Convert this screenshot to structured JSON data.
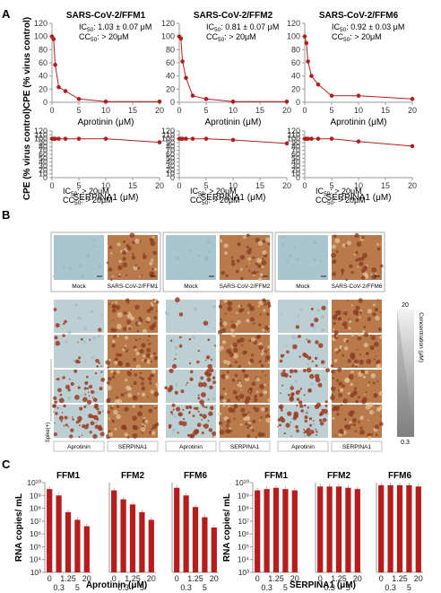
{
  "figure": {
    "panel_letters": [
      "A",
      "B",
      "C"
    ]
  },
  "colors": {
    "series": "#b51c1c",
    "bar": "#b51c1c",
    "axis": "#9a9a9a",
    "grid": "#cfcfcf",
    "mock_tissue": "#a9c6d0",
    "infected_tissue": "#b87a4a",
    "stain_red": "#9c3a22"
  },
  "chart_data": [
    {
      "id": "a1",
      "type": "line",
      "title": "SARS-CoV-2/FFM1",
      "xlabel": "Aprotinin (μM)",
      "ylabel": "CPE (% virus control)",
      "xlim": [
        0,
        20
      ],
      "ylim": [
        0,
        120
      ],
      "xticks": [
        0,
        5,
        10,
        15,
        20
      ],
      "yticks": [
        0,
        20,
        40,
        60,
        80,
        100,
        120
      ],
      "annotation": [
        "IC50: 1.03 ± 0.07 μM",
        "CC50: > 20μM"
      ],
      "x": [
        0,
        0.3,
        0.6,
        1.25,
        2.5,
        5,
        10,
        20
      ],
      "y": [
        100,
        96,
        57,
        23,
        17,
        5,
        1,
        1
      ]
    },
    {
      "id": "a2",
      "type": "line",
      "title": "SARS-CoV-2/FFM2",
      "xlabel": "Aprotinin (μM)",
      "ylabel": "",
      "xlim": [
        0,
        20
      ],
      "ylim": [
        0,
        120
      ],
      "xticks": [
        0,
        5,
        10,
        15,
        20
      ],
      "yticks": [
        0,
        20,
        40,
        60,
        80,
        100,
        120
      ],
      "annotation": [
        "IC50: 0.81 ± 0.07 μM",
        "CC50: > 20μM"
      ],
      "x": [
        0,
        0.3,
        0.6,
        1.25,
        2.5,
        5,
        10,
        20
      ],
      "y": [
        100,
        97,
        62,
        37,
        10,
        5,
        1,
        1
      ]
    },
    {
      "id": "a3",
      "type": "line",
      "title": "SARS-CoV-2/FFM6",
      "xlabel": "Aprotinin (μM)",
      "ylabel": "",
      "xlim": [
        0,
        20
      ],
      "ylim": [
        0,
        120
      ],
      "xticks": [
        0,
        5,
        10,
        15,
        20
      ],
      "yticks": [
        0,
        20,
        40,
        60,
        80,
        100,
        120
      ],
      "annotation": [
        "IC50: 0.92 ± 0.03 μM",
        "CC50: > 20μM"
      ],
      "x": [
        0,
        0.3,
        0.6,
        1.25,
        2.5,
        5,
        10,
        20
      ],
      "y": [
        100,
        90,
        62,
        40,
        27,
        10,
        10,
        5
      ]
    },
    {
      "id": "a4",
      "type": "line",
      "title": "",
      "xlabel": "SERPINA1 (μM)",
      "ylabel": "CPE (% virus control)",
      "xlim": [
        0,
        20
      ],
      "ylim": [
        0,
        120
      ],
      "xticks": [
        0,
        5,
        10,
        15,
        20
      ],
      "yticks": [
        0,
        10,
        20,
        30,
        40,
        50,
        60,
        70,
        80,
        90,
        100,
        110,
        120
      ],
      "annotation": [
        "IC50: > 20μM",
        "CC50: > 20μM"
      ],
      "x": [
        0,
        0.3,
        0.6,
        1.25,
        2.5,
        5,
        10,
        20
      ],
      "y": [
        100,
        100,
        100,
        100,
        100,
        100,
        100,
        91
      ]
    },
    {
      "id": "a5",
      "type": "line",
      "title": "",
      "xlabel": "SERPINA1 (μM)",
      "ylabel": "",
      "xlim": [
        0,
        20
      ],
      "ylim": [
        0,
        120
      ],
      "xticks": [
        0,
        5,
        10,
        15,
        20
      ],
      "yticks": [
        0,
        10,
        20,
        30,
        40,
        50,
        60,
        70,
        80,
        90,
        100,
        110,
        120
      ],
      "annotation": [
        "IC50: > 20μM",
        "CC50: > 20μM"
      ],
      "x": [
        0,
        0.3,
        0.6,
        1.25,
        2.5,
        5,
        10,
        20
      ],
      "y": [
        100,
        100,
        100,
        100,
        100,
        100,
        97,
        88
      ]
    },
    {
      "id": "a6",
      "type": "line",
      "title": "",
      "xlabel": "SERPINA1 (μM)",
      "ylabel": "",
      "xlim": [
        0,
        20
      ],
      "ylim": [
        0,
        120
      ],
      "xticks": [
        0,
        5,
        10,
        15,
        20
      ],
      "yticks": [
        0,
        10,
        20,
        30,
        40,
        50,
        60,
        70,
        80,
        90,
        100,
        110,
        120
      ],
      "annotation": [
        "IC50: > 20μM",
        "CC50: > 20μM"
      ],
      "x": [
        0,
        0.3,
        0.6,
        1.25,
        2.5,
        5,
        10,
        20
      ],
      "y": [
        100,
        100,
        100,
        100,
        100,
        100,
        93,
        81
      ]
    },
    {
      "id": "c1",
      "type": "bar",
      "title": "FFM1",
      "group": "Aprotinin (μM)",
      "ylabel": "RNA copies/ mL",
      "categories": [
        "0",
        "0.3",
        "1.25",
        "5",
        "20"
      ],
      "log_values": [
        9.5,
        9.0,
        7.7,
        7.1,
        6.6
      ],
      "ylim_log": [
        3,
        10
      ]
    },
    {
      "id": "c2",
      "type": "bar",
      "title": "FFM2",
      "group": "Aprotinin (μM)",
      "ylabel": "",
      "categories": [
        "0",
        "0.3",
        "1.25",
        "5",
        "20"
      ],
      "log_values": [
        9.4,
        8.7,
        8.3,
        7.7,
        7.1
      ],
      "ylim_log": [
        3,
        10
      ]
    },
    {
      "id": "c3",
      "type": "bar",
      "title": "FFM6",
      "group": "Aprotinin (μM)",
      "ylabel": "",
      "categories": [
        "0",
        "0.3",
        "1.25",
        "5",
        "20"
      ],
      "log_values": [
        9.6,
        9.0,
        8.1,
        7.3,
        6.5
      ],
      "ylim_log": [
        3,
        10
      ]
    },
    {
      "id": "c4",
      "type": "bar",
      "title": "FFM1",
      "group": "SERPINA1 (μM)",
      "ylabel": "RNA copies/ mL",
      "categories": [
        "0",
        "0.3",
        "1.25",
        "5",
        "20"
      ],
      "log_values": [
        9.4,
        9.5,
        9.6,
        9.5,
        9.4
      ],
      "ylim_log": [
        3,
        10
      ]
    },
    {
      "id": "c5",
      "type": "bar",
      "title": "FFM2",
      "group": "SERPINA1 (μM)",
      "ylabel": "",
      "categories": [
        "0",
        "0.3",
        "1.25",
        "5",
        "20"
      ],
      "log_values": [
        9.7,
        9.7,
        9.7,
        9.6,
        9.5
      ],
      "ylim_log": [
        3,
        10
      ]
    },
    {
      "id": "c6",
      "type": "bar",
      "title": "FFM6",
      "group": "SERPINA1 (μM)",
      "ylabel": "",
      "categories": [
        "0",
        "0.3",
        "1.25",
        "5",
        "20"
      ],
      "log_values": [
        9.8,
        9.8,
        9.8,
        9.8,
        9.7
      ],
      "ylim_log": [
        3,
        10
      ]
    }
  ],
  "panel_b": {
    "groups": [
      {
        "mock_label": "Mock",
        "virus_label": "SARS-CoV-2/FFM1",
        "drug_labels": [
          "Aprotinin",
          "SERPINA1"
        ]
      },
      {
        "mock_label": "Mock",
        "virus_label": "SARS-CoV-2/FFM2",
        "drug_labels": [
          "Aprotinin",
          "SERPINA1"
        ]
      },
      {
        "mock_label": "Mock",
        "virus_label": "SARS-CoV-2/FFM6",
        "drug_labels": [
          "Aprotinin",
          "SERPINA1"
        ]
      }
    ],
    "side_label": "Spike(+)",
    "concentration_label": "Concentration (μM)",
    "concentration_top": "20",
    "concentration_bottom": "0.3",
    "aprotinin_infection_levels": [
      [
        0.08,
        0.22,
        0.55,
        0.85
      ],
      [
        0.05,
        0.25,
        0.5,
        0.8
      ],
      [
        0.1,
        0.3,
        0.55,
        0.85
      ]
    ]
  }
}
